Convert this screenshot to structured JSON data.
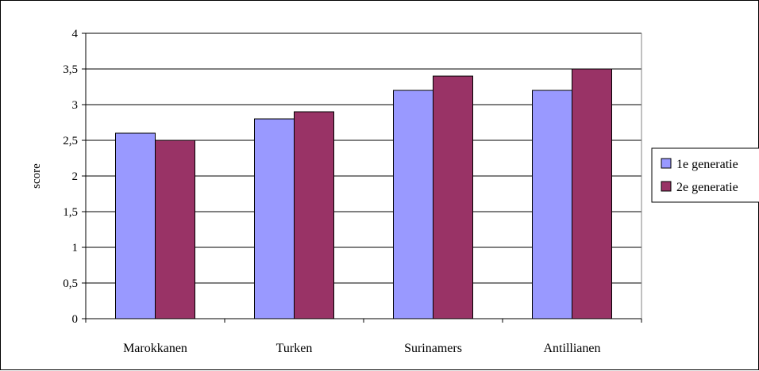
{
  "chart_data": {
    "type": "bar",
    "title": "",
    "xlabel": "",
    "ylabel": "score",
    "ylim": [
      0,
      4
    ],
    "yticks": [
      "0",
      "0,5",
      "1",
      "1,5",
      "2",
      "2,5",
      "3",
      "3,5",
      "4"
    ],
    "categories": [
      "Marokkanen",
      "Turken",
      "Surinamers",
      "Antillianen"
    ],
    "series": [
      {
        "name": "1e generatie",
        "values": [
          2.6,
          2.8,
          3.2,
          3.2
        ],
        "color": "#9999ff"
      },
      {
        "name": "2e generatie",
        "values": [
          2.5,
          2.9,
          3.4,
          3.5
        ],
        "color": "#993366"
      }
    ],
    "grid": true,
    "legend_position": "right"
  }
}
